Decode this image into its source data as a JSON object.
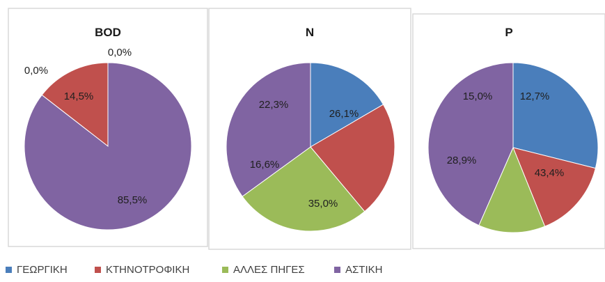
{
  "colors": {
    "georgiki": "#4a7ebb",
    "ktinotrofiki": "#c0504d",
    "alles_piges": "#9bbb59",
    "astiki": "#8064a2",
    "panel_border": "#d9d9d9",
    "label_text": "#1f1f1f"
  },
  "legend": [
    {
      "key": "georgiki",
      "label": "ΓΕΩΡΓΙΚΗ"
    },
    {
      "key": "ktinotrofiki",
      "label": "ΚΤΗΝΟΤΡΟΦΙΚΗ"
    },
    {
      "key": "alles_piges",
      "label": "ΑΛΛΕΣ ΠΗΓΕΣ"
    },
    {
      "key": "astiki",
      "label": "ΑΣΤΙΚΗ"
    }
  ],
  "chart_data": [
    {
      "type": "pie",
      "title": "BOD",
      "categories": [
        "ΓΕΩΡΓΙΚΗ",
        "ΚΤΗΝΟΤΡΟΦΙΚΗ",
        "ΑΛΛΕΣ ΠΗΓΕΣ",
        "ΑΣΤΙΚΗ"
      ],
      "values": [
        0.0,
        14.5,
        0.0,
        85.5
      ],
      "labels": [
        "0,0%",
        "14,5%",
        "0,0%",
        "85,5%"
      ],
      "start_angle_deg": 0,
      "direction": "counterclockwise"
    },
    {
      "type": "pie",
      "title": "N",
      "categories": [
        "ΓΕΩΡΓΙΚΗ",
        "ΚΤΗΝΟΤΡΟΦΙΚΗ",
        "ΑΛΛΕΣ ΠΗΓΕΣ",
        "ΑΣΤΙΚΗ"
      ],
      "values": [
        16.6,
        22.3,
        26.1,
        35.0
      ],
      "labels": [
        "16,6%",
        "22,3%",
        "26,1%",
        "35,0%"
      ],
      "start_angle_deg": 0,
      "direction": "clockwise"
    },
    {
      "type": "pie",
      "title": "P",
      "categories": [
        "ΓΕΩΡΓΙΚΗ",
        "ΚΤΗΝΟΤΡΟΦΙΚΗ",
        "ΑΛΛΕΣ ΠΗΓΕΣ",
        "ΑΣΤΙΚΗ"
      ],
      "values": [
        28.9,
        15.0,
        12.7,
        43.4
      ],
      "labels": [
        "28,9%",
        "15,0%",
        "12,7%",
        "43,4%"
      ],
      "start_angle_deg": 0,
      "direction": "clockwise"
    }
  ]
}
